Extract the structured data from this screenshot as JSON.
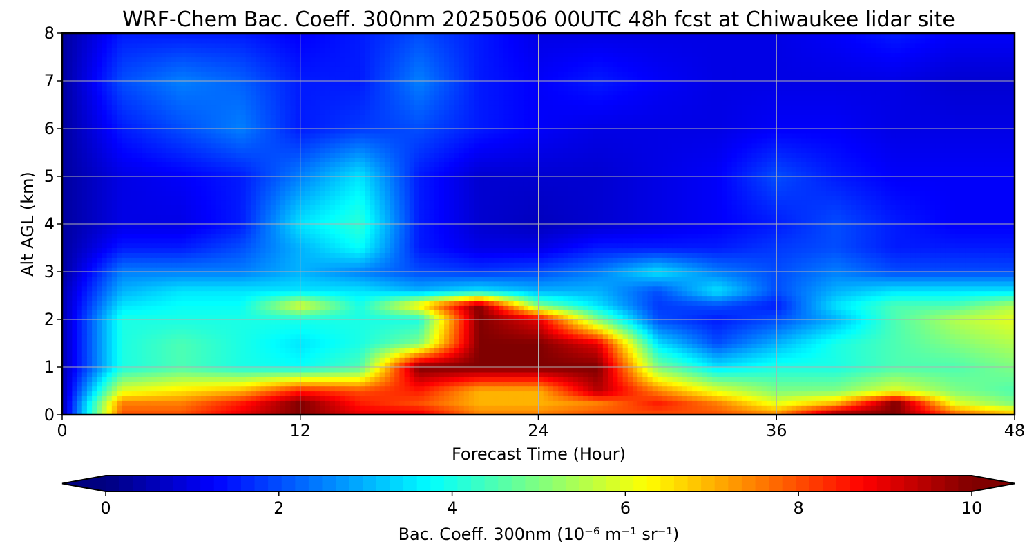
{
  "chart_data": {
    "type": "heatmap",
    "title": "WRF-Chem Bac. Coeff. 300nm  20250506 00UTC 48h fcst at Chiwaukee lidar site",
    "xlabel": "Forecast Time (Hour)",
    "ylabel": "Alt AGL (km)",
    "xlim": [
      0,
      48
    ],
    "ylim": [
      0,
      8
    ],
    "x_ticks": [
      0,
      12,
      24,
      36,
      48
    ],
    "y_ticks": [
      0,
      1,
      2,
      3,
      4,
      5,
      6,
      7,
      8
    ],
    "grid": true,
    "x": [
      0,
      3,
      6,
      9,
      12,
      15,
      18,
      21,
      24,
      27,
      30,
      33,
      36,
      39,
      42,
      45,
      48
    ],
    "y": [
      0,
      0.25,
      0.5,
      1,
      1.5,
      2,
      2.3,
      2.6,
      3,
      3.5,
      4,
      5,
      6,
      7,
      8
    ],
    "z": [
      [
        0.5,
        8.0,
        8.0,
        9.0,
        10.0,
        9.0,
        9.0,
        7.5,
        7.5,
        8.0,
        8.0,
        8.0,
        7.5,
        10.0,
        10.0,
        8.0,
        7.0
      ],
      [
        0.5,
        7.5,
        7.5,
        8.5,
        10.0,
        8.5,
        8.0,
        7.0,
        7.0,
        7.5,
        8.5,
        7.5,
        6.0,
        7.0,
        10.0,
        6.0,
        5.0
      ],
      [
        0.5,
        6.0,
        6.5,
        7.0,
        8.5,
        8.0,
        8.5,
        7.0,
        7.0,
        9.5,
        7.5,
        6.0,
        5.0,
        5.0,
        6.0,
        5.0,
        4.5
      ],
      [
        0.5,
        4.0,
        4.5,
        4.0,
        3.8,
        4.5,
        10.0,
        10.0,
        10.0,
        10.0,
        5.0,
        3.5,
        4.0,
        4.0,
        4.5,
        4.5,
        5.0
      ],
      [
        0.5,
        4.0,
        4.5,
        4.0,
        3.5,
        4.0,
        5.0,
        10.0,
        10.0,
        9.0,
        3.5,
        2.0,
        3.0,
        4.0,
        4.5,
        5.0,
        5.5
      ],
      [
        0.5,
        4.0,
        4.0,
        4.0,
        4.0,
        4.0,
        4.0,
        10.0,
        9.0,
        5.0,
        2.0,
        1.5,
        2.0,
        3.0,
        4.5,
        5.5,
        6.0
      ],
      [
        0.5,
        3.5,
        3.8,
        3.8,
        6.0,
        4.0,
        6.5,
        10.0,
        5.0,
        3.5,
        1.8,
        2.0,
        1.5,
        3.5,
        4.5,
        4.5,
        5.5
      ],
      [
        0.5,
        3.0,
        3.5,
        3.5,
        3.5,
        3.5,
        3.0,
        3.5,
        3.0,
        3.0,
        2.0,
        3.5,
        2.0,
        3.0,
        3.5,
        3.5,
        3.5
      ],
      [
        0.3,
        2.5,
        2.5,
        2.5,
        3.0,
        2.5,
        2.0,
        1.8,
        2.0,
        2.5,
        3.5,
        2.5,
        2.0,
        2.5,
        2.0,
        2.0,
        2.0
      ],
      [
        0.3,
        1.5,
        1.5,
        2.0,
        3.0,
        3.8,
        1.5,
        1.0,
        1.0,
        1.5,
        1.5,
        1.5,
        1.8,
        2.0,
        1.5,
        1.5,
        1.5
      ],
      [
        0.3,
        1.0,
        1.0,
        1.5,
        3.5,
        4.2,
        1.5,
        0.8,
        0.6,
        0.8,
        1.0,
        1.2,
        1.5,
        2.0,
        1.5,
        1.2,
        1.2
      ],
      [
        0.3,
        1.0,
        1.2,
        1.5,
        2.5,
        3.5,
        1.5,
        0.8,
        0.8,
        0.8,
        1.0,
        1.2,
        2.0,
        1.5,
        1.2,
        1.2,
        1.2
      ],
      [
        0.3,
        1.5,
        2.0,
        2.5,
        1.5,
        1.8,
        2.0,
        1.5,
        1.2,
        1.0,
        1.0,
        1.0,
        1.2,
        1.2,
        1.0,
        1.0,
        1.0
      ],
      [
        0.3,
        2.0,
        2.5,
        2.2,
        1.5,
        1.5,
        2.5,
        1.5,
        1.2,
        1.5,
        1.2,
        1.0,
        1.0,
        1.0,
        1.0,
        0.8,
        0.8
      ],
      [
        0.3,
        1.5,
        1.5,
        1.5,
        1.2,
        1.5,
        2.0,
        1.5,
        1.0,
        1.0,
        1.0,
        1.0,
        1.0,
        1.2,
        1.5,
        1.2,
        1.2
      ]
    ],
    "colorbar": {
      "label": "Bac. Coeff. 300nm  (10⁻⁶ m⁻¹ sr⁻¹)",
      "min": 0,
      "max": 10,
      "ticks": [
        0,
        2,
        4,
        6,
        8,
        10
      ],
      "extend": "both",
      "colormap": "jet"
    }
  }
}
